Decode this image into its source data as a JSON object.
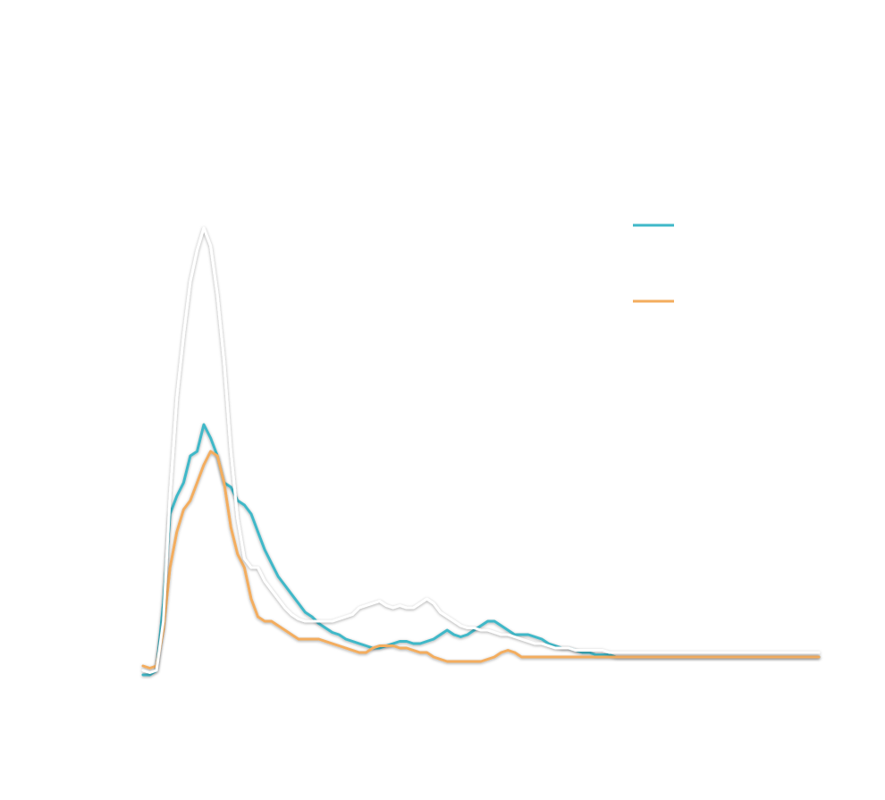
{
  "chart_data": {
    "type": "line",
    "title": "",
    "xlabel": "",
    "ylabel": "",
    "grid": false,
    "legend": "upper right",
    "x": [
      0,
      1,
      2,
      3,
      4,
      5,
      6,
      7,
      8,
      9,
      10,
      11,
      12,
      13,
      14,
      15,
      16,
      17,
      18,
      19,
      20,
      21,
      22,
      23,
      24,
      25,
      26,
      27,
      28,
      29,
      30,
      31,
      32,
      33,
      34,
      35,
      36,
      37,
      38,
      39,
      40,
      41,
      42,
      43,
      44,
      45,
      46,
      47,
      48,
      49,
      50,
      51,
      52,
      53,
      54,
      55,
      56,
      57,
      58,
      59,
      60,
      61,
      62,
      63,
      64,
      65,
      66,
      67,
      68,
      69,
      70,
      71,
      72,
      73,
      74,
      75,
      76,
      77,
      78,
      79,
      80,
      81,
      82,
      83,
      84,
      85,
      86,
      87,
      88,
      89,
      90,
      91,
      92,
      93,
      94,
      95,
      96,
      97,
      98,
      99,
      100
    ],
    "xlim": [
      0,
      100
    ],
    "ylim": [
      0,
      100
    ],
    "series": [
      {
        "name": "",
        "color": "#3fb8c8",
        "values": [
          0.0,
          0.0,
          1.0,
          16.0,
          36.0,
          40.0,
          43.0,
          49.0,
          50.0,
          56.0,
          53.0,
          49.0,
          43.0,
          42.0,
          39.0,
          38.0,
          36.0,
          32.0,
          28.0,
          25.0,
          22.0,
          20.0,
          18.0,
          16.0,
          14.0,
          13.0,
          11.5,
          10.5,
          9.5,
          9.0,
          8.0,
          7.5,
          7.0,
          6.5,
          6.0,
          6.0,
          6.5,
          7.0,
          7.5,
          7.5,
          7.0,
          7.0,
          7.5,
          8.0,
          9.0,
          10.0,
          9.0,
          8.5,
          9.0,
          10.0,
          11.0,
          12.0,
          12.0,
          11.0,
          10.0,
          9.0,
          9.0,
          9.0,
          8.5,
          8.0,
          7.0,
          6.5,
          6.0,
          6.0,
          5.5,
          5.0,
          5.0,
          4.5,
          4.5,
          4.5,
          4.0,
          4.0,
          4.0,
          4.0,
          4.0,
          4.0,
          4.0,
          4.0,
          4.0,
          4.0,
          4.0,
          4.0,
          4.0,
          4.0,
          4.0,
          4.0,
          4.0,
          4.0,
          4.0,
          4.0,
          4.0,
          4.0,
          4.0,
          4.0,
          4.0,
          4.0,
          4.0,
          4.0,
          4.0,
          4.0,
          4.0
        ]
      },
      {
        "name": "",
        "color": "#f3ad5e",
        "values": [
          2.0,
          1.5,
          2.0,
          10.0,
          24.0,
          32.0,
          37.0,
          39.0,
          43.0,
          47.0,
          50.0,
          49.0,
          43.0,
          33.0,
          27.0,
          24.0,
          17.0,
          13.0,
          12.0,
          12.0,
          11.0,
          10.0,
          9.0,
          8.0,
          8.0,
          8.0,
          8.0,
          7.5,
          7.0,
          6.5,
          6.0,
          5.5,
          5.0,
          5.0,
          6.0,
          6.5,
          6.5,
          6.5,
          6.0,
          6.0,
          5.5,
          5.0,
          5.0,
          4.0,
          3.5,
          3.0,
          3.0,
          3.0,
          3.0,
          3.0,
          3.0,
          3.5,
          4.0,
          5.0,
          5.5,
          5.0,
          4.0,
          4.0,
          4.0,
          4.0,
          4.0,
          4.0,
          4.0,
          4.0,
          4.0,
          4.0,
          4.0,
          4.0,
          4.0,
          4.0,
          4.0,
          4.0,
          4.0,
          4.0,
          4.0,
          4.0,
          4.0,
          4.0,
          4.0,
          4.0,
          4.0,
          4.0,
          4.0,
          4.0,
          4.0,
          4.0,
          4.0,
          4.0,
          4.0,
          4.0,
          4.0,
          4.0,
          4.0,
          4.0,
          4.0,
          4.0,
          4.0,
          4.0,
          4.0,
          4.0,
          4.0
        ]
      },
      {
        "name": "",
        "color": "#ffffff",
        "values": [
          1.0,
          0.5,
          1.0,
          12.0,
          40.0,
          62.0,
          76.0,
          88.0,
          95.0,
          100.0,
          96.0,
          85.0,
          70.0,
          50.0,
          35.0,
          26.0,
          24.0,
          24.0,
          21.0,
          19.0,
          17.0,
          15.0,
          13.5,
          12.5,
          12.0,
          12.0,
          12.0,
          12.0,
          12.0,
          12.5,
          13.0,
          13.5,
          15.0,
          15.5,
          16.0,
          16.5,
          15.5,
          15.0,
          15.5,
          15.0,
          15.0,
          16.0,
          17.0,
          16.0,
          14.0,
          13.0,
          12.0,
          11.0,
          10.5,
          10.5,
          10.0,
          10.0,
          9.5,
          9.0,
          9.0,
          8.5,
          8.0,
          7.5,
          7.0,
          7.0,
          6.5,
          6.0,
          6.0,
          6.0,
          5.5,
          5.5,
          5.5,
          5.5,
          5.5,
          5.0,
          5.0,
          5.0,
          5.0,
          5.0,
          5.0,
          5.0,
          5.0,
          5.0,
          5.0,
          5.0,
          5.0,
          5.0,
          5.0,
          5.0,
          5.0,
          5.0,
          5.0,
          5.0,
          5.0,
          5.0,
          5.0,
          5.0,
          5.0,
          5.0,
          5.0,
          5.0,
          5.0,
          5.0,
          5.0,
          5.0,
          5.0
        ]
      }
    ]
  }
}
